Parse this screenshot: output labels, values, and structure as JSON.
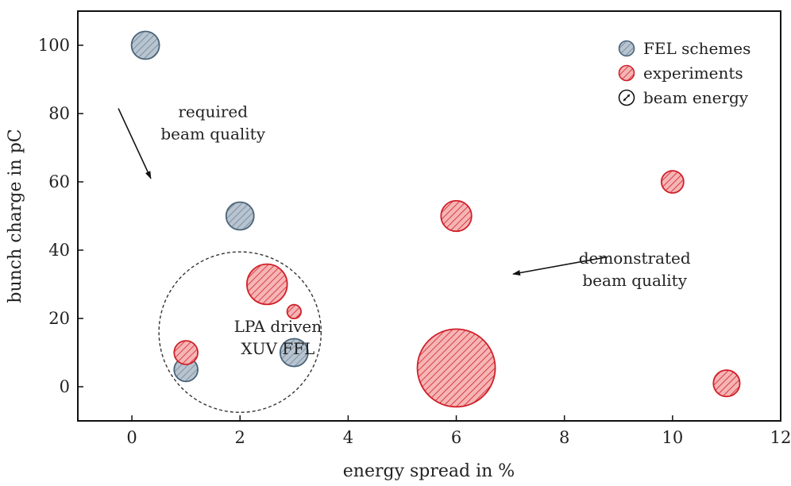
{
  "chart_data": {
    "type": "scatter",
    "title": "",
    "xlabel": "energy spread in %",
    "ylabel": "bunch charge in pC",
    "xlim": [
      -1,
      12
    ],
    "ylim": [
      -10,
      110
    ],
    "xticks": [
      0,
      2,
      4,
      6,
      8,
      10,
      12
    ],
    "yticks": [
      0,
      20,
      40,
      60,
      80,
      100
    ],
    "xtick_labels": [
      "0",
      "2",
      "4",
      "6",
      "8",
      "10",
      "12"
    ],
    "ytick_labels": [
      "0",
      "20",
      "40",
      "60",
      "80",
      "100"
    ],
    "grid": false,
    "legend_position": "top-right",
    "marker_size_meaning": "beam energy",
    "series": [
      {
        "name": "FEL schemes",
        "color": "#b8c4cf",
        "edge_color": "#4a6378",
        "points": [
          {
            "x": 0.25,
            "y": 100,
            "size": 1
          },
          {
            "x": 2,
            "y": 50,
            "size": 1
          },
          {
            "x": 1,
            "y": 5,
            "size": 0.85
          },
          {
            "x": 3,
            "y": 10,
            "size": 1
          }
        ]
      },
      {
        "name": "experiments",
        "color": "#f2a0a0",
        "edge_color": "#d0202a",
        "points": [
          {
            "x": 6,
            "y": 50,
            "size": 1.1
          },
          {
            "x": 10,
            "y": 60,
            "size": 0.8
          },
          {
            "x": 2.5,
            "y": 30,
            "size": 1.45
          },
          {
            "x": 3,
            "y": 22,
            "size": 0.5
          },
          {
            "x": 1,
            "y": 10,
            "size": 0.85
          },
          {
            "x": 6,
            "y": 5.5,
            "size": 2.8
          },
          {
            "x": 11,
            "y": 1,
            "size": 0.95
          }
        ]
      }
    ],
    "legend": [
      "FEL schemes",
      "experiments",
      "beam energy"
    ],
    "annotations": [
      {
        "lines": [
          "required",
          "beam quality"
        ],
        "x": 1.5,
        "y": 79
      },
      {
        "lines": [
          "demonstrated",
          "beam quality"
        ],
        "x": 9.3,
        "y": 36
      },
      {
        "lines": [
          "LPA driven",
          "XUV FFL"
        ],
        "x": 2.7,
        "y": 16
      }
    ],
    "arrows": [
      {
        "from": [
          -0.25,
          81.5
        ],
        "to": [
          0.35,
          61
        ]
      },
      {
        "from": [
          8.8,
          38
        ],
        "to": [
          7.05,
          33
        ]
      }
    ],
    "region": {
      "label": "LPA driven XUV FFL",
      "cx": 2,
      "cy": 16,
      "rx": 1.5,
      "ry": 23.5
    }
  }
}
